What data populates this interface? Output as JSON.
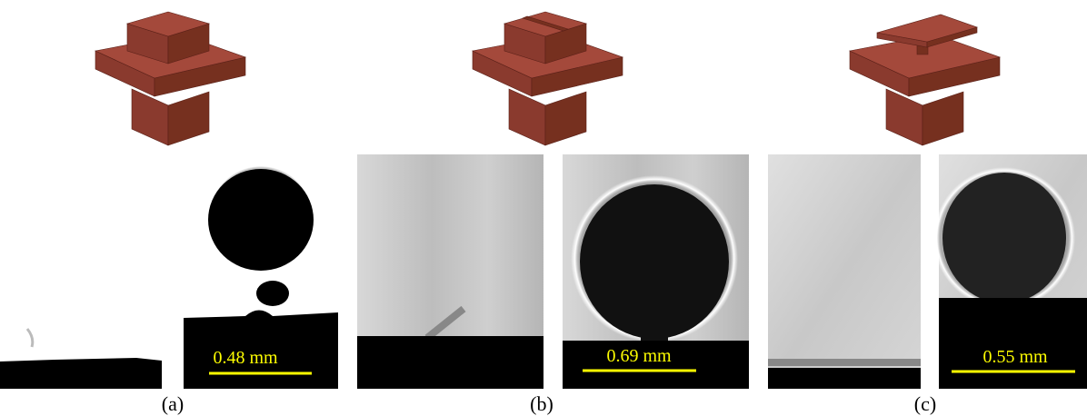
{
  "panels": [
    {
      "label": "(a)",
      "scale_label": "0.48 mm"
    },
    {
      "label": "(b)",
      "scale_label": "0.69 mm"
    },
    {
      "label": "(c)",
      "scale_label": "0.55 mm"
    }
  ]
}
